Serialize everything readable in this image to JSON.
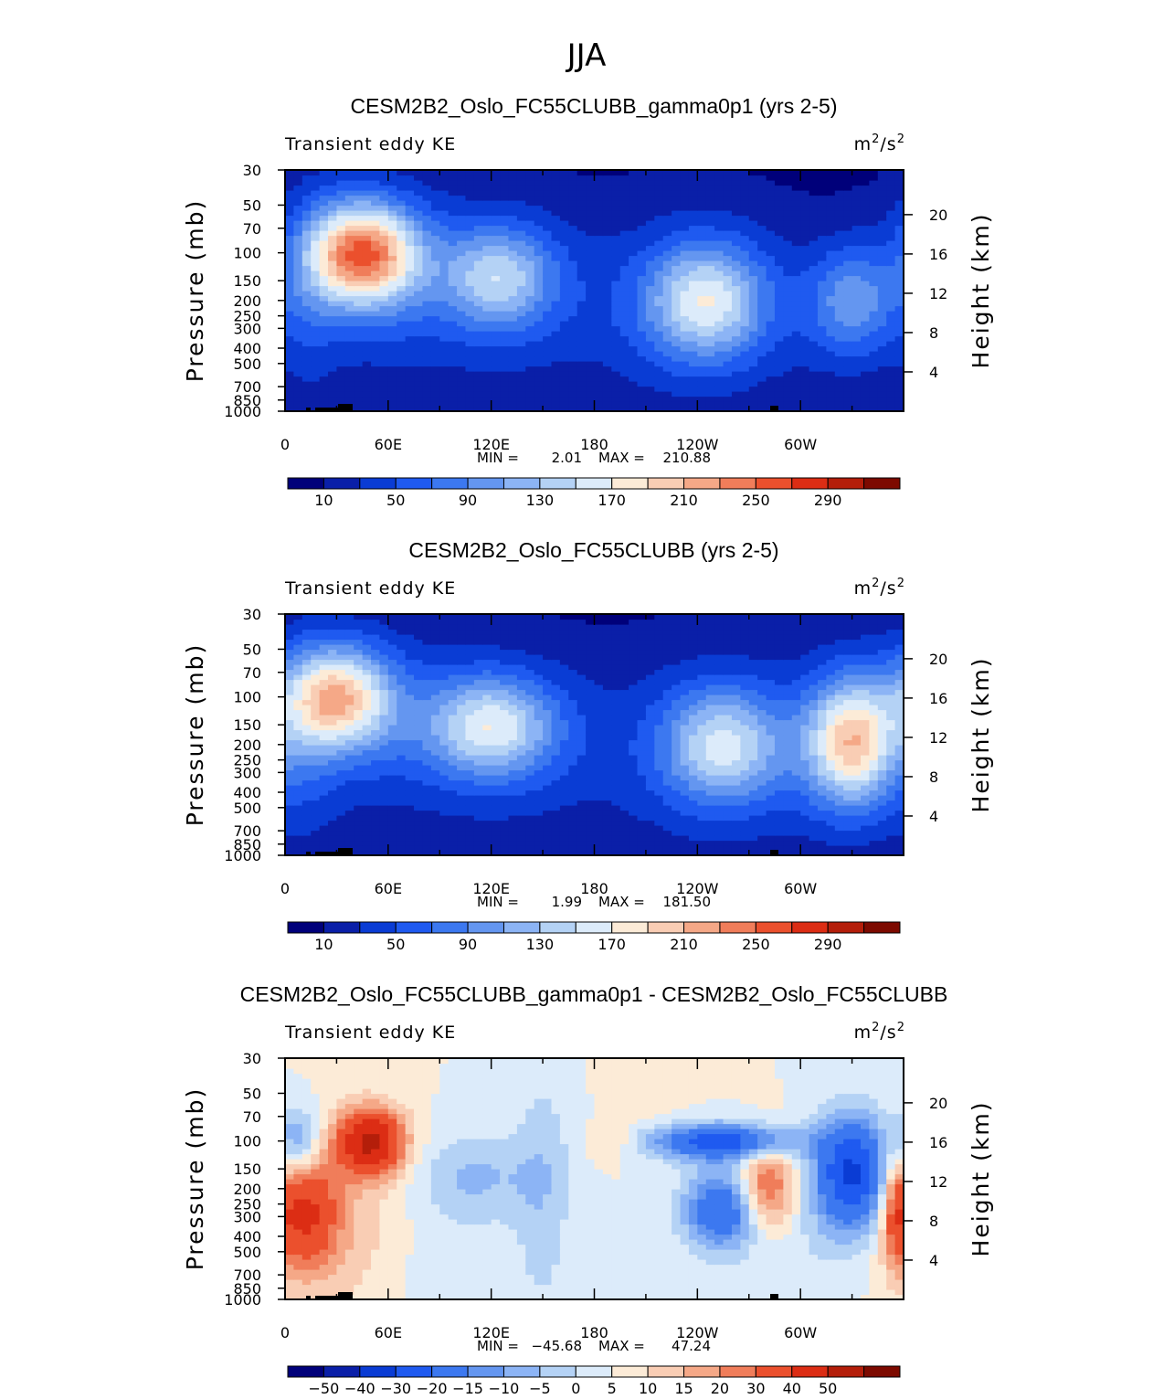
{
  "page": {
    "title": "JJA"
  },
  "colors": {
    "full_scale": [
      "#00007a",
      "#0a1fa8",
      "#0a3cd4",
      "#1f5af0",
      "#3c78f0",
      "#6496f0",
      "#8cb4f5",
      "#b4d2f5",
      "#dcebfa",
      "#fcebd7",
      "#f9cdb4",
      "#f5a887",
      "#f07d5a",
      "#eb502d",
      "#dc2d14",
      "#b41e0a",
      "#7d0a00"
    ],
    "diff_scale": [
      "#00007a",
      "#0a1fa8",
      "#0a3cd4",
      "#1f5af0",
      "#3c78f0",
      "#6496f0",
      "#8cb4f5",
      "#b4d2f5",
      "#dcebfa",
      "#fcebd7",
      "#f9cdb4",
      "#f5a887",
      "#f07d5a",
      "#eb502d",
      "#dc2d14",
      "#b41e0a",
      "#7d0a00"
    ],
    "terrain": "#000000"
  },
  "chart_data": [
    {
      "type": "heatmap",
      "title": "CESM2B2_Oslo_FC55CLUBB_gamma0p1 (yrs 2-5)",
      "left_string": "Transient eddy KE",
      "units": {
        "base": "m",
        "sup1": "2",
        "mid": "/s",
        "sup2": "2"
      },
      "ylabel": "Pressure (mb)",
      "y2label": "Height (km)",
      "x_ticks": [
        "0",
        "60E",
        "120E",
        "180",
        "120W",
        "60W"
      ],
      "y_ticks": [
        "30",
        "50",
        "70",
        "100",
        "150",
        "200",
        "250",
        "300",
        "400",
        "500",
        "700",
        "850",
        "1000"
      ],
      "y2_ticks": [
        "20",
        "16",
        "12",
        "8",
        "4"
      ],
      "xlim": [
        0,
        360
      ],
      "ylim": [
        1000,
        30
      ],
      "y_scale": "log",
      "min_label": "MIN =",
      "min_value": "2.01",
      "max_label": "MAX =",
      "max_value": "210.88",
      "colorbar_labels": [
        "10",
        "50",
        "90",
        "130",
        "170",
        "210",
        "250",
        "290"
      ],
      "scale": "full",
      "blobs": [
        {
          "x": 45,
          "p": 100,
          "sx": 22,
          "sy": 0.22,
          "v": 185
        },
        {
          "x": 42,
          "p": 110,
          "sx": 32,
          "sy": 0.35,
          "v": 60
        },
        {
          "x": 125,
          "p": 140,
          "sx": 22,
          "sy": 0.22,
          "v": 95
        },
        {
          "x": 115,
          "p": 150,
          "sx": 40,
          "sy": 0.35,
          "v": 35
        },
        {
          "x": 245,
          "p": 200,
          "sx": 24,
          "sy": 0.25,
          "v": 115
        },
        {
          "x": 245,
          "p": 200,
          "sx": 38,
          "sy": 0.4,
          "v": 35
        },
        {
          "x": 330,
          "p": 200,
          "sx": 18,
          "sy": 0.25,
          "v": 85
        },
        {
          "x": 15,
          "p": 200,
          "sx": 12,
          "sy": 0.5,
          "v": 20
        },
        {
          "x": 180,
          "p": 180,
          "sx": 90,
          "sy": 0.45,
          "v": 12
        },
        {
          "x": 100,
          "p": 350,
          "sx": 90,
          "sy": 0.4,
          "v": 8
        },
        {
          "x": 280,
          "p": 350,
          "sx": 90,
          "sy": 0.4,
          "v": 8
        }
      ]
    },
    {
      "type": "heatmap",
      "title": "CESM2B2_Oslo_FC55CLUBB (yrs 2-5)",
      "left_string": "Transient eddy KE",
      "units": {
        "base": "m",
        "sup1": "2",
        "mid": "/s",
        "sup2": "2"
      },
      "ylabel": "Pressure (mb)",
      "y2label": "Height (km)",
      "x_ticks": [
        "0",
        "60E",
        "120E",
        "180",
        "120W",
        "60W"
      ],
      "y_ticks": [
        "30",
        "50",
        "70",
        "100",
        "150",
        "200",
        "250",
        "300",
        "400",
        "500",
        "700",
        "850",
        "1000"
      ],
      "y2_ticks": [
        "20",
        "16",
        "12",
        "8",
        "4"
      ],
      "xlim": [
        0,
        360
      ],
      "ylim": [
        1000,
        30
      ],
      "y_scale": "log",
      "min_label": "MIN =",
      "min_value": "1.99",
      "max_label": "MAX =",
      "max_value": "181.50",
      "colorbar_labels": [
        "10",
        "50",
        "90",
        "130",
        "170",
        "210",
        "250",
        "290"
      ],
      "scale": "full",
      "blobs": [
        {
          "x": 30,
          "p": 100,
          "sx": 22,
          "sy": 0.22,
          "v": 150
        },
        {
          "x": 35,
          "p": 110,
          "sx": 32,
          "sy": 0.35,
          "v": 50
        },
        {
          "x": 120,
          "p": 150,
          "sx": 26,
          "sy": 0.22,
          "v": 115
        },
        {
          "x": 115,
          "p": 160,
          "sx": 40,
          "sy": 0.35,
          "v": 35
        },
        {
          "x": 255,
          "p": 200,
          "sx": 24,
          "sy": 0.25,
          "v": 105
        },
        {
          "x": 255,
          "p": 200,
          "sx": 38,
          "sy": 0.4,
          "v": 35
        },
        {
          "x": 330,
          "p": 190,
          "sx": 18,
          "sy": 0.28,
          "v": 150
        },
        {
          "x": 330,
          "p": 190,
          "sx": 28,
          "sy": 0.4,
          "v": 35
        },
        {
          "x": 15,
          "p": 200,
          "sx": 12,
          "sy": 0.5,
          "v": 20
        },
        {
          "x": 180,
          "p": 180,
          "sx": 90,
          "sy": 0.45,
          "v": 12
        },
        {
          "x": 100,
          "p": 350,
          "sx": 90,
          "sy": 0.4,
          "v": 8
        },
        {
          "x": 280,
          "p": 350,
          "sx": 90,
          "sy": 0.4,
          "v": 8
        }
      ]
    },
    {
      "type": "heatmap",
      "title": "CESM2B2_Oslo_FC55CLUBB_gamma0p1 - CESM2B2_Oslo_FC55CLUBB",
      "left_string": "Transient eddy KE",
      "units": {
        "base": "m",
        "sup1": "2",
        "mid": "/s",
        "sup2": "2"
      },
      "ylabel": "Pressure (mb)",
      "y2label": "Height (km)",
      "x_ticks": [
        "0",
        "60E",
        "120E",
        "180",
        "120W",
        "60W"
      ],
      "y_ticks": [
        "30",
        "50",
        "70",
        "100",
        "150",
        "200",
        "250",
        "300",
        "400",
        "500",
        "700",
        "850",
        "1000"
      ],
      "y2_ticks": [
        "20",
        "16",
        "12",
        "8",
        "4"
      ],
      "xlim": [
        0,
        360
      ],
      "ylim": [
        1000,
        30
      ],
      "y_scale": "log",
      "min_label": "MIN =",
      "min_value": "−45.68",
      "max_label": "MAX =",
      "max_value": "47.24",
      "colorbar_labels": [
        "−50",
        "−40",
        "−30",
        "−20",
        "−15",
        "−10",
        "−5",
        "0",
        "5",
        "10",
        "15",
        "20",
        "30",
        "40",
        "50"
      ],
      "scale": "diff",
      "blobs": [
        {
          "x": 50,
          "p": 100,
          "sx": 14,
          "sy": 0.15,
          "v": 42
        },
        {
          "x": 8,
          "p": 100,
          "sx": 9,
          "sy": 0.15,
          "v": -18
        },
        {
          "x": 10,
          "p": 280,
          "sx": 14,
          "sy": 0.25,
          "v": 28
        },
        {
          "x": 30,
          "p": 350,
          "sx": 25,
          "sy": 0.4,
          "v": 8
        },
        {
          "x": 110,
          "p": 170,
          "sx": 25,
          "sy": 0.2,
          "v": -11
        },
        {
          "x": 150,
          "p": 200,
          "sx": 12,
          "sy": 0.6,
          "v": -8
        },
        {
          "x": 190,
          "p": 100,
          "sx": 10,
          "sy": 0.08,
          "v": 7
        },
        {
          "x": 255,
          "p": 100,
          "sx": 30,
          "sy": 0.08,
          "v": -35
        },
        {
          "x": 255,
          "p": 270,
          "sx": 16,
          "sy": 0.18,
          "v": -30
        },
        {
          "x": 280,
          "p": 200,
          "sx": 12,
          "sy": 0.2,
          "v": 25
        },
        {
          "x": 330,
          "p": 160,
          "sx": 15,
          "sy": 0.25,
          "v": -42
        },
        {
          "x": 355,
          "p": 270,
          "sx": 5,
          "sy": 0.25,
          "v": 15
        },
        {
          "x": 210,
          "p": 40,
          "sx": 15,
          "sy": 0.2,
          "v": 4
        },
        {
          "x": 100,
          "p": 700,
          "sx": 20,
          "sy": 0.2,
          "v": -5
        },
        {
          "x": 300,
          "p": 450,
          "sx": 20,
          "sy": 0.3,
          "v": -4
        }
      ]
    }
  ]
}
